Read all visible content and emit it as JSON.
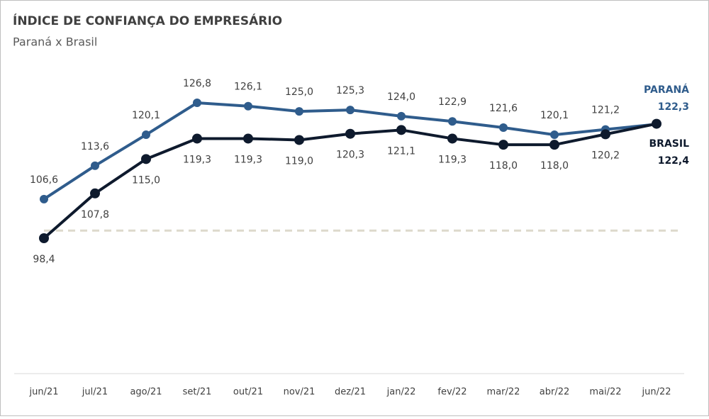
{
  "chart_data": {
    "type": "line",
    "title": "ÍNDICE DE CONFIANÇA DO EMPRESÁRIO",
    "subtitle": "Paraná x Brasil",
    "categories": [
      "jun/21",
      "jul/21",
      "ago/21",
      "set/21",
      "out/21",
      "nov/21",
      "dez/21",
      "jan/22",
      "fev/22",
      "mar/22",
      "abr/22",
      "mai/22",
      "jun/22"
    ],
    "series": [
      {
        "name": "PARANÁ",
        "color": "#2f5c8c",
        "values": [
          106.6,
          113.6,
          120.1,
          126.8,
          126.1,
          125.0,
          125.3,
          124.0,
          122.9,
          121.6,
          120.1,
          121.2,
          122.3
        ],
        "value_labels": [
          "106,6",
          "113,6",
          "120,1",
          "126,8",
          "126,1",
          "125,0",
          "125,3",
          "124,0",
          "122,9",
          "121,6",
          "120,1",
          "121,2",
          "122,3"
        ]
      },
      {
        "name": "BRASIL",
        "color": "#0e1a2d",
        "values": [
          98.4,
          107.8,
          115.0,
          119.3,
          119.3,
          119.0,
          120.3,
          121.1,
          119.3,
          118.0,
          118.0,
          120.2,
          122.4
        ],
        "value_labels": [
          "98,4",
          "107,8",
          "115,0",
          "119,3",
          "119,3",
          "119,0",
          "120,3",
          "121,1",
          "119,3",
          "118,0",
          "118,0",
          "120,2",
          "122,4"
        ]
      }
    ],
    "reference_line": 100
  }
}
